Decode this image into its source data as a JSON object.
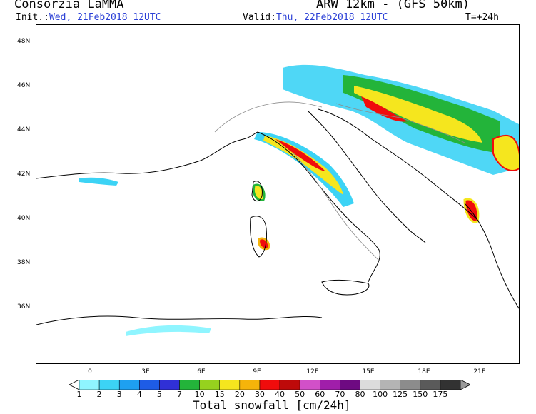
{
  "header": {
    "source": "Consorzia LaMMA",
    "model": "ARW 12km - (GFS 50km)",
    "init_label": "Init.:",
    "init_value": "Wed, 21Feb2018 12UTC",
    "valid_label": "Valid:",
    "valid_value": "Thu, 22Feb2018 12UTC",
    "timestep": "T=+24h"
  },
  "map": {
    "lat_labels": [
      "48N",
      "46N",
      "44N",
      "42N",
      "40N",
      "38N",
      "36N"
    ],
    "lon_labels": [
      "0",
      "3E",
      "6E",
      "9E",
      "12E",
      "15E",
      "18E",
      "21E"
    ],
    "colors": {
      "coast": "#000000",
      "border": "#8c8c8c"
    }
  },
  "legend": {
    "title": "Total snowfall [cm/24h]",
    "levels": [
      "1",
      "2",
      "3",
      "4",
      "5",
      "7",
      "10",
      "15",
      "20",
      "30",
      "40",
      "50",
      "60",
      "70",
      "80",
      "100",
      "125",
      "150",
      "175"
    ],
    "colors": [
      "#8ff5ff",
      "#3cd3f5",
      "#1ea0f0",
      "#1e5ce6",
      "#3030d6",
      "#23b43a",
      "#96d21e",
      "#f5e61e",
      "#f5b40a",
      "#f00c0c",
      "#be0a0a",
      "#d250c8",
      "#a01eaa",
      "#6e0a82",
      "#dcdcdc",
      "#b4b4b4",
      "#8c8c8c",
      "#5a5a5a",
      "#323232"
    ]
  }
}
